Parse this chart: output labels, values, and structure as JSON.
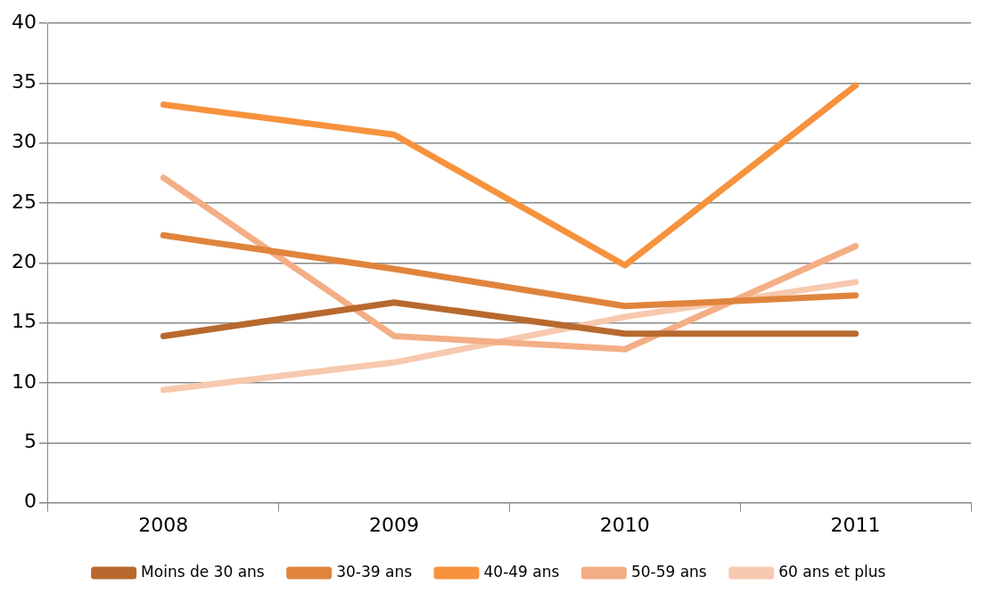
{
  "chart_data": {
    "type": "line",
    "categories": [
      "2008",
      "2009",
      "2010",
      "2011"
    ],
    "series": [
      {
        "name": "Moins de 30 ans",
        "color": "#b8692e",
        "values": [
          13.9,
          16.7,
          14.1,
          14.1
        ]
      },
      {
        "name": "30-39 ans",
        "color": "#e0843c",
        "values": [
          22.3,
          19.5,
          16.4,
          17.3
        ]
      },
      {
        "name": "40-49 ans",
        "color": "#f7923d",
        "values": [
          33.2,
          30.7,
          19.8,
          34.8
        ]
      },
      {
        "name": "50-59 ans",
        "color": "#f4ae85",
        "values": [
          27.1,
          13.9,
          12.8,
          21.4
        ]
      },
      {
        "name": "60 ans et plus",
        "color": "#f7c9ae",
        "values": [
          9.4,
          11.7,
          15.5,
          18.4
        ]
      }
    ],
    "ylim": [
      0,
      40
    ],
    "yticks": [
      0,
      5,
      10,
      15,
      20,
      25,
      30,
      35,
      40
    ],
    "grid": "y",
    "legend": "bottom",
    "marker": "none",
    "line_style": "solid"
  }
}
